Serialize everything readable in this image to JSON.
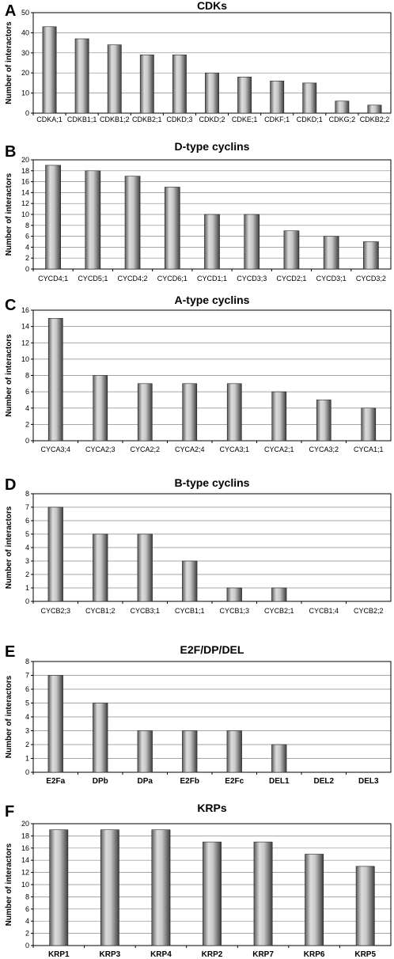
{
  "chart_data": [
    {
      "panel": "A",
      "type": "bar",
      "title": "CDKs",
      "ylabel": "Number of interactors",
      "xlabel": "",
      "ylim": [
        0,
        50
      ],
      "ytick_step": 10,
      "grid": true,
      "categories": [
        "CDKA;1",
        "CDKB1;1",
        "CDKB1;2",
        "CDKB2;1",
        "CDKD;3",
        "CDKD;2",
        "CDKE;1",
        "CDKF;1",
        "CDKD;1",
        "CDKG;2",
        "CDKB2;2"
      ],
      "values": [
        43,
        37,
        34,
        29,
        29,
        20,
        18,
        16,
        15,
        6,
        4
      ]
    },
    {
      "panel": "B",
      "type": "bar",
      "title": "D-type cyclins",
      "ylabel": "Number of interactors",
      "xlabel": "",
      "ylim": [
        0,
        20
      ],
      "ytick_step": 2,
      "grid": true,
      "categories": [
        "CYCD4;1",
        "CYCD5;1",
        "CYCD4;2",
        "CYCD6;1",
        "CYCD1;1",
        "CYCD3;3",
        "CYCD2;1",
        "CYCD3;1",
        "CYCD3;2"
      ],
      "values": [
        19,
        18,
        17,
        15,
        10,
        10,
        7,
        6,
        5
      ]
    },
    {
      "panel": "C",
      "type": "bar",
      "title": "A-type cyclins",
      "ylabel": "Number of interactors",
      "xlabel": "",
      "ylim": [
        0,
        16
      ],
      "ytick_step": 2,
      "grid": true,
      "categories": [
        "CYCA3;4",
        "CYCA2;3",
        "CYCA2;2",
        "CYCA2;4",
        "CYCA3;1",
        "CYCA2;1",
        "CYCA3;2",
        "CYCA1;1"
      ],
      "values": [
        15,
        8,
        7,
        7,
        7,
        6,
        5,
        4
      ]
    },
    {
      "panel": "D",
      "type": "bar",
      "title": "B-type cyclins",
      "ylabel": "Number of interactors",
      "xlabel": "",
      "ylim": [
        0,
        8
      ],
      "ytick_step": 1,
      "grid": true,
      "categories": [
        "CYCB2;3",
        "CYCB1;2",
        "CYCB3;1",
        "CYCB1;1",
        "CYCB1;3",
        "CYCB2;1",
        "CYCB1;4",
        "CYCB2;2"
      ],
      "values": [
        7,
        5,
        5,
        3,
        1,
        1,
        0,
        0
      ]
    },
    {
      "panel": "E",
      "type": "bar",
      "title": "E2F/DP/DEL",
      "ylabel": "Number of interactors",
      "xlabel": "",
      "ylim": [
        0,
        8
      ],
      "ytick_step": 1,
      "grid": true,
      "categories": [
        "E2Fa",
        "DPb",
        "DPa",
        "E2Fb",
        "E2Fc",
        "DEL1",
        "DEL2",
        "DEL3"
      ],
      "values": [
        7,
        5,
        3,
        3,
        3,
        2,
        0,
        0
      ]
    },
    {
      "panel": "F",
      "type": "bar",
      "title": "KRPs",
      "ylabel": "Number of interactors",
      "xlabel": "",
      "ylim": [
        0,
        20
      ],
      "ytick_step": 2,
      "grid": true,
      "categories": [
        "KRP1",
        "KRP3",
        "KRP4",
        "KRP2",
        "KRP7",
        "KRP6",
        "KRP5"
      ],
      "values": [
        19,
        19,
        19,
        17,
        17,
        15,
        13
      ]
    }
  ]
}
